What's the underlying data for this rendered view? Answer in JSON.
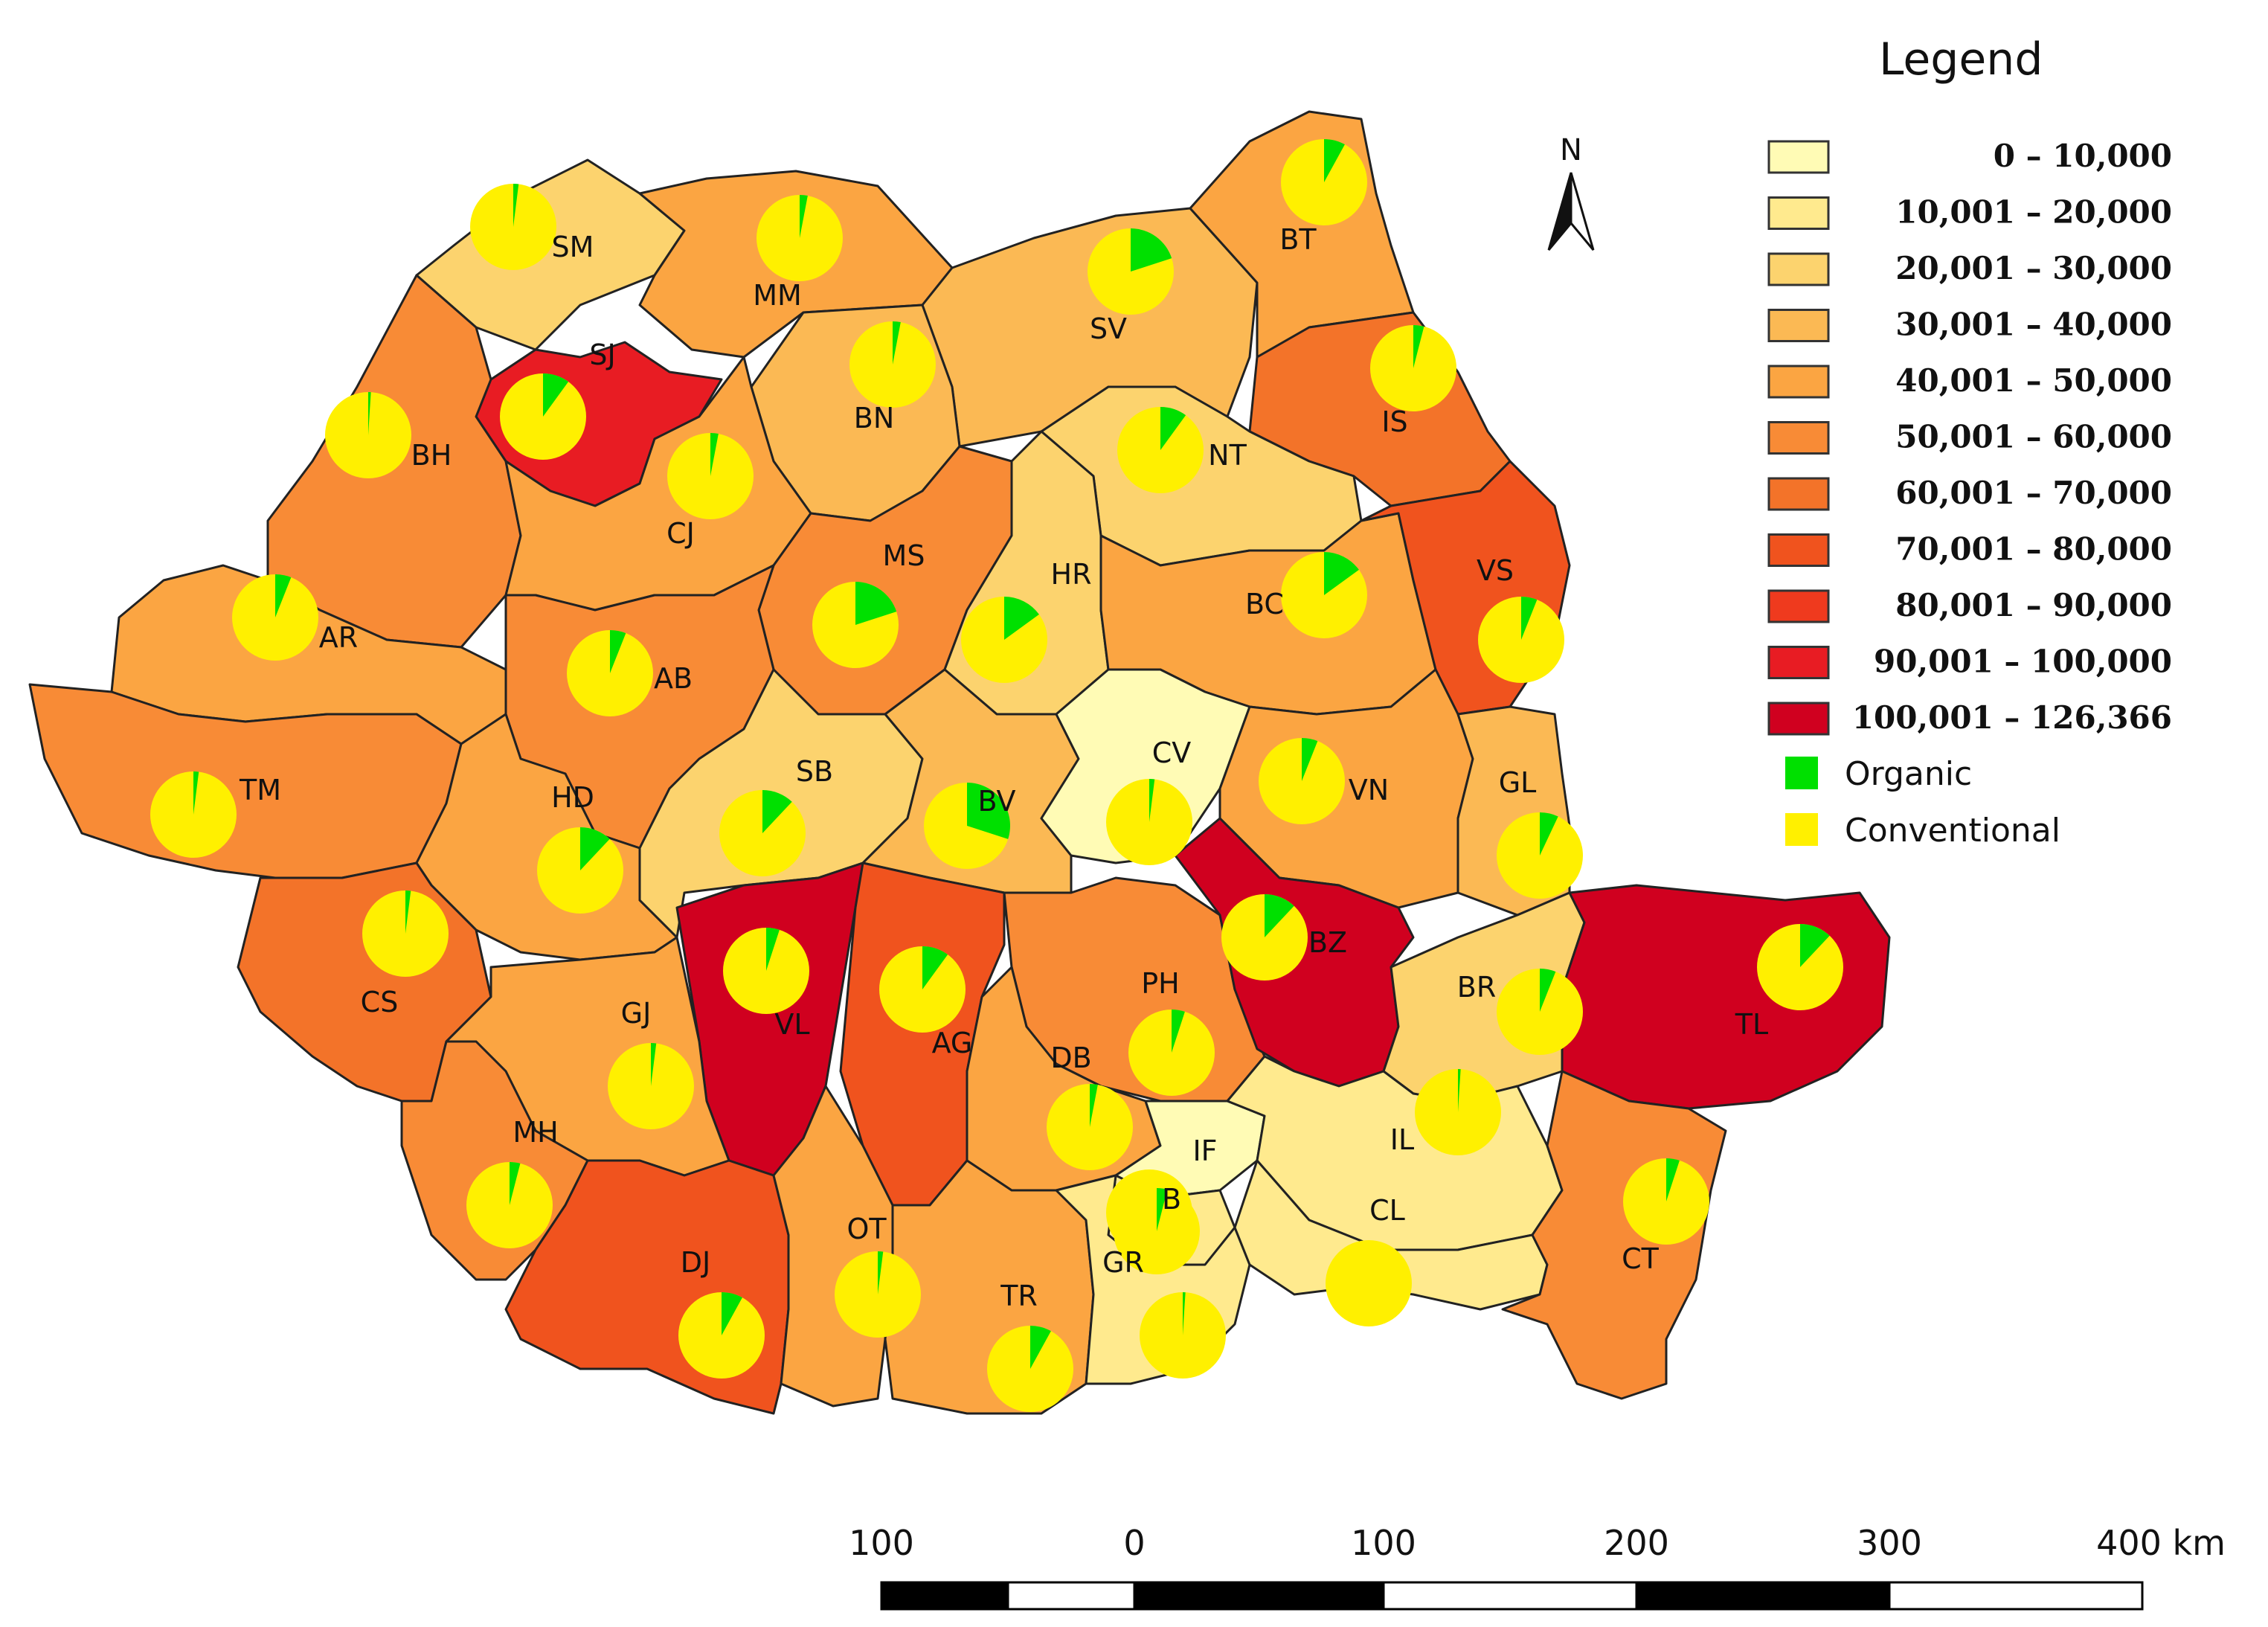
{
  "legend": {
    "title": "Legend",
    "classes": [
      {
        "label": "0 – 10,000",
        "color": "#FFFBB5"
      },
      {
        "label": "10,001 – 20,000",
        "color": "#FFEA8E"
      },
      {
        "label": "20,001 – 30,000",
        "color": "#FCD36E"
      },
      {
        "label": "30,001 – 40,000",
        "color": "#FBB954"
      },
      {
        "label": "40,001 – 50,000",
        "color": "#FBA542"
      },
      {
        "label": "50,001 – 60,000",
        "color": "#F88B36"
      },
      {
        "label": "60,001 – 70,000",
        "color": "#F37329"
      },
      {
        "label": "70,001 – 80,000",
        "color": "#F0531E"
      },
      {
        "label": "80,001 – 90,000",
        "color": "#EF3A1E"
      },
      {
        "label": "90,001 – 100,000",
        "color": "#E81C23"
      },
      {
        "label": "100,001 – 126,366",
        "color": "#D0001F"
      }
    ],
    "pie_legend": [
      {
        "label": "Organic",
        "color": "#00E000"
      },
      {
        "label": "Conventional",
        "color": "#FFF000"
      }
    ]
  },
  "north_arrow": {
    "label": "N"
  },
  "scale_bar": {
    "labels": [
      "100",
      "0",
      "100",
      "200",
      "300",
      "400 km"
    ]
  },
  "counties": [
    {
      "code": "SM",
      "class_index": 2,
      "organic_share": 0.02
    },
    {
      "code": "MM",
      "class_index": 4,
      "organic_share": 0.03
    },
    {
      "code": "SV",
      "class_index": 3,
      "organic_share": 0.2
    },
    {
      "code": "BT",
      "class_index": 4,
      "organic_share": 0.08
    },
    {
      "code": "SJ",
      "class_index": 9,
      "organic_share": 0.1
    },
    {
      "code": "BH",
      "class_index": 5,
      "organic_share": 0.01
    },
    {
      "code": "BN",
      "class_index": 3,
      "organic_share": 0.03
    },
    {
      "code": "CJ",
      "class_index": 4,
      "organic_share": 0.03
    },
    {
      "code": "IS",
      "class_index": 6,
      "organic_share": 0.04
    },
    {
      "code": "NT",
      "class_index": 2,
      "organic_share": 0.1
    },
    {
      "code": "MS",
      "class_index": 5,
      "organic_share": 0.2
    },
    {
      "code": "HR",
      "class_index": 2,
      "organic_share": 0.15
    },
    {
      "code": "BC",
      "class_index": 4,
      "organic_share": 0.15
    },
    {
      "code": "VS",
      "class_index": 7,
      "organic_share": 0.06
    },
    {
      "code": "AR",
      "class_index": 4,
      "organic_share": 0.06
    },
    {
      "code": "AB",
      "class_index": 5,
      "organic_share": 0.06
    },
    {
      "code": "TM",
      "class_index": 5,
      "organic_share": 0.02
    },
    {
      "code": "HD",
      "class_index": 4,
      "organic_share": 0.12
    },
    {
      "code": "SB",
      "class_index": 2,
      "organic_share": 0.12
    },
    {
      "code": "BV",
      "class_index": 3,
      "organic_share": 0.3
    },
    {
      "code": "CV",
      "class_index": 0,
      "organic_share": 0.02
    },
    {
      "code": "VN",
      "class_index": 4,
      "organic_share": 0.06
    },
    {
      "code": "GL",
      "class_index": 3,
      "organic_share": 0.07
    },
    {
      "code": "CS",
      "class_index": 6,
      "organic_share": 0.02
    },
    {
      "code": "VL",
      "class_index": 10,
      "organic_share": 0.05
    },
    {
      "code": "AG",
      "class_index": 7,
      "organic_share": 0.1
    },
    {
      "code": "PH",
      "class_index": 5,
      "organic_share": 0.05
    },
    {
      "code": "BZ",
      "class_index": 10,
      "organic_share": 0.12
    },
    {
      "code": "BR",
      "class_index": 2,
      "organic_share": 0.06
    },
    {
      "code": "TL",
      "class_index": 10,
      "organic_share": 0.12
    },
    {
      "code": "GJ",
      "class_index": 4,
      "organic_share": 0.02
    },
    {
      "code": "DB",
      "class_index": 4,
      "organic_share": 0.03
    },
    {
      "code": "MH",
      "class_index": 5,
      "organic_share": 0.04
    },
    {
      "code": "IF",
      "class_index": 0,
      "organic_share": 0.0
    },
    {
      "code": "IL",
      "class_index": 1,
      "organic_share": 0.01
    },
    {
      "code": "B",
      "class_index": 1,
      "organic_share": 0.04
    },
    {
      "code": "DJ",
      "class_index": 7,
      "organic_share": 0.08
    },
    {
      "code": "OT",
      "class_index": 4,
      "organic_share": 0.02
    },
    {
      "code": "TR",
      "class_index": 4,
      "organic_share": 0.08
    },
    {
      "code": "GR",
      "class_index": 1,
      "organic_share": 0.01
    },
    {
      "code": "CL",
      "class_index": 1,
      "organic_share": 0.0
    },
    {
      "code": "CT",
      "class_index": 5,
      "organic_share": 0.05
    }
  ]
}
